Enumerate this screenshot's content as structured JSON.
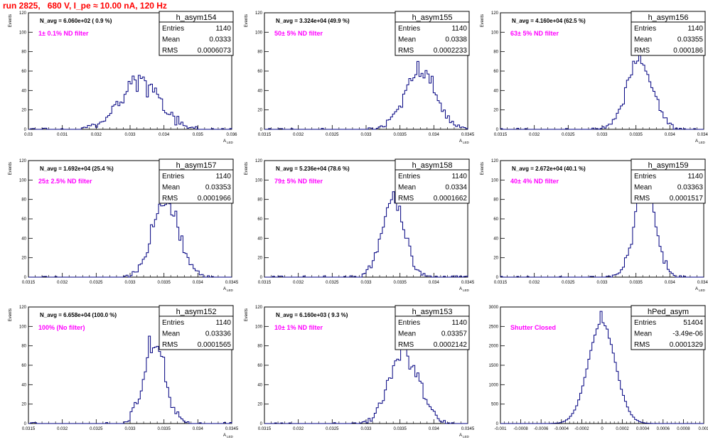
{
  "page_title": "run 2825,   680 V, I_pe ≈ 10.00 nA, 120 Hz",
  "colors": {
    "title": "#ff0000",
    "annotation": "#ff00ff",
    "histogram": "#000080"
  },
  "chart_data": [
    {
      "type": "histogram",
      "name": "h_asym154",
      "stats": {
        "labels": [
          "Entries",
          "Mean",
          "RMS"
        ],
        "values": [
          "1140",
          "0.0333",
          "0.0006073"
        ]
      },
      "n_avg": "N_avg = 6.060e+02 ( 0.9 %)",
      "filter": "1± 0.1% ND filter",
      "xlabel": "A",
      "xlabel_sub": "LED",
      "ylabel": "Events",
      "xlim": [
        0.03,
        0.036
      ],
      "ylim": [
        0,
        120
      ],
      "xticks": [
        "0.03",
        "0.031",
        "0.032",
        "0.033",
        "0.034",
        "0.035",
        "0.036"
      ],
      "yticks": [
        "0",
        "20",
        "40",
        "60",
        "80",
        "100",
        "120"
      ],
      "center": 0.0333,
      "width": 0.0006073,
      "peak": 54
    },
    {
      "type": "histogram",
      "name": "h_asym155",
      "stats": {
        "labels": [
          "Entries",
          "Mean",
          "RMS"
        ],
        "values": [
          "1140",
          "0.0338",
          "0.0002233"
        ]
      },
      "n_avg": "N_avg = 3.324e+04 (49.9 %)",
      "filter": "50± 5% ND filter",
      "xlabel": "A",
      "xlabel_sub": "LED",
      "ylabel": "Events",
      "xlim": [
        0.0315,
        0.0345
      ],
      "ylim": [
        0,
        120
      ],
      "xticks": [
        "0.0315",
        "0.032",
        "0.0325",
        "0.033",
        "0.0335",
        "0.034",
        "0.0345"
      ],
      "yticks": [
        "0",
        "20",
        "40",
        "60",
        "80",
        "100",
        "120"
      ],
      "center": 0.0338,
      "width": 0.0002233,
      "peak": 70
    },
    {
      "type": "histogram",
      "name": "h_asym156",
      "stats": {
        "labels": [
          "Entries",
          "Mean",
          "RMS"
        ],
        "values": [
          "1140",
          "0.03355",
          "0.000186"
        ]
      },
      "n_avg": "N_avg = 4.160e+04 (62.5 %)",
      "filter": "63± 5% ND filter",
      "xlabel": "A",
      "xlabel_sub": "LED",
      "ylabel": "Events",
      "xlim": [
        0.0315,
        0.0345
      ],
      "ylim": [
        0,
        120
      ],
      "xticks": [
        "0.0315",
        "0.032",
        "0.0325",
        "0.033",
        "0.0335",
        "0.034",
        "0.0345"
      ],
      "yticks": [
        "0",
        "20",
        "40",
        "60",
        "80",
        "100",
        "120"
      ],
      "center": 0.03355,
      "width": 0.000186,
      "peak": 81
    },
    {
      "type": "histogram",
      "name": "h_asym157",
      "stats": {
        "labels": [
          "Entries",
          "Mean",
          "RMS"
        ],
        "values": [
          "1140",
          "0.03353",
          "0.0001966"
        ]
      },
      "n_avg": "N_avg = 1.692e+04 (25.4 %)",
      "filter": "25± 2.5% ND filter",
      "xlabel": "A",
      "xlabel_sub": "LED",
      "ylabel": "Events",
      "xlim": [
        0.0315,
        0.0345
      ],
      "ylim": [
        0,
        120
      ],
      "xticks": [
        "0.0315",
        "0.032",
        "0.0325",
        "0.033",
        "0.0335",
        "0.034",
        "0.0345"
      ],
      "yticks": [
        "0",
        "20",
        "40",
        "60",
        "80",
        "100",
        "120"
      ],
      "center": 0.03353,
      "width": 0.0001966,
      "peak": 86
    },
    {
      "type": "histogram",
      "name": "h_asym158",
      "stats": {
        "labels": [
          "Entries",
          "Mean",
          "RMS"
        ],
        "values": [
          "1140",
          "0.0334",
          "0.0001662"
        ]
      },
      "n_avg": "N_avg = 5.236e+04 (78.6 %)",
      "filter": "79± 5% ND filter",
      "xlabel": "A",
      "xlabel_sub": "LED",
      "ylabel": "Events",
      "xlim": [
        0.0315,
        0.0345
      ],
      "ylim": [
        0,
        120
      ],
      "xticks": [
        "0.0315",
        "0.032",
        "0.0325",
        "0.033",
        "0.0335",
        "0.034",
        "0.0345"
      ],
      "yticks": [
        "0",
        "20",
        "40",
        "60",
        "80",
        "100",
        "120"
      ],
      "center": 0.0334,
      "width": 0.0001662,
      "peak": 88
    },
    {
      "type": "histogram",
      "name": "h_asym159",
      "stats": {
        "labels": [
          "Entries",
          "Mean",
          "RMS"
        ],
        "values": [
          "1140",
          "0.03363",
          "0.0001517"
        ]
      },
      "n_avg": "N_avg = 2.672e+04 (40.1 %)",
      "filter": "40± 4% ND filter",
      "xlabel": "A",
      "xlabel_sub": "LED",
      "ylabel": "Events",
      "xlim": [
        0.0315,
        0.0345
      ],
      "ylim": [
        0,
        120
      ],
      "xticks": [
        "0.0315",
        "0.032",
        "0.0325",
        "0.033",
        "0.0335",
        "0.034",
        "0.0345"
      ],
      "yticks": [
        "0",
        "20",
        "40",
        "60",
        "80",
        "100",
        "120"
      ],
      "center": 0.03363,
      "width": 0.0001517,
      "peak": 103
    },
    {
      "type": "histogram",
      "name": "h_asym152",
      "stats": {
        "labels": [
          "Entries",
          "Mean",
          "RMS"
        ],
        "values": [
          "1140",
          "0.03336",
          "0.0001565"
        ]
      },
      "n_avg": "N_avg = 6.658e+04 (100.0 %)",
      "filter": "100% (No filter)",
      "xlabel": "A",
      "xlabel_sub": "LED",
      "ylabel": "Events",
      "xlim": [
        0.0315,
        0.0345
      ],
      "ylim": [
        0,
        120
      ],
      "xticks": [
        "0.0315",
        "0.032",
        "0.0325",
        "0.033",
        "0.0335",
        "0.034",
        "0.0345"
      ],
      "yticks": [
        "0",
        "20",
        "40",
        "60",
        "80",
        "100",
        "120"
      ],
      "center": 0.03336,
      "width": 0.0001565,
      "peak": 90
    },
    {
      "type": "histogram",
      "name": "h_asym153",
      "stats": {
        "labels": [
          "Entries",
          "Mean",
          "RMS"
        ],
        "values": [
          "1140",
          "0.03357",
          "0.0002142"
        ]
      },
      "n_avg": "N_avg = 6.160e+03 ( 9.3 %)",
      "filter": "10± 1% ND filter",
      "xlabel": "A",
      "xlabel_sub": "LED",
      "ylabel": "Events",
      "xlim": [
        0.0315,
        0.0345
      ],
      "ylim": [
        0,
        120
      ],
      "xticks": [
        "0.0315",
        "0.032",
        "0.0325",
        "0.033",
        "0.0335",
        "0.034",
        "0.0345"
      ],
      "yticks": [
        "0",
        "20",
        "40",
        "60",
        "80",
        "100",
        "120"
      ],
      "center": 0.03357,
      "width": 0.0002142,
      "peak": 83
    },
    {
      "type": "histogram",
      "name": "hPed_asym",
      "stats": {
        "labels": [
          "Entries",
          "Mean",
          "RMS"
        ],
        "values": [
          "51404",
          "-3.49e-06",
          "0.0001329"
        ]
      },
      "n_avg": "",
      "filter": "Shutter Closed",
      "xlabel": "",
      "xlabel_sub": "",
      "ylabel": "",
      "xlim": [
        -0.001,
        0.001
      ],
      "ylim": [
        0,
        3200
      ],
      "xticks": [
        "-0.001",
        "-0.0008",
        "-0.0006",
        "-0.0004",
        "-0.0002",
        "0",
        "0.0002",
        "0.0004",
        "0.0006",
        "0.0008",
        "0.001"
      ],
      "yticks": [
        "0",
        "500",
        "1000",
        "1500",
        "2000",
        "2500",
        "3000"
      ],
      "center": -3.49e-06,
      "width": 0.0001329,
      "peak": 3080
    }
  ]
}
